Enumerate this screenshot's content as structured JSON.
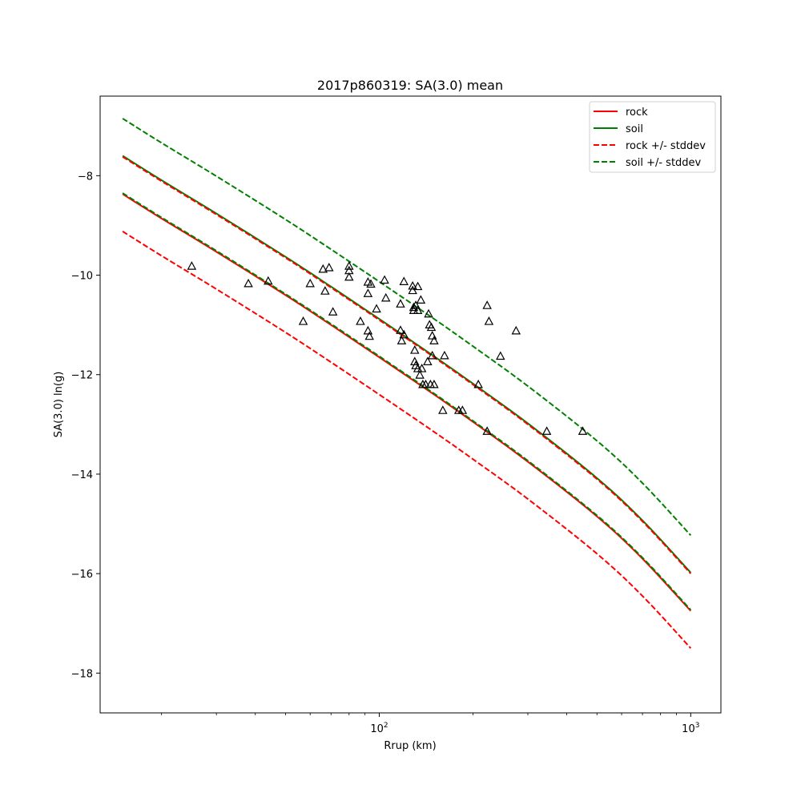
{
  "chart_data": {
    "type": "line",
    "title": "2017p860319: SA(3.0) mean",
    "xlabel": "Rrup (km)",
    "ylabel": "SA(3.0) ln(g)",
    "x_scale": "log",
    "xlim": [
      12.7,
      1250
    ],
    "ylim": [
      -18.8,
      -6.4
    ],
    "x_ticks": [
      {
        "value": 100,
        "base": "10",
        "exp": "2"
      },
      {
        "value": 1000,
        "base": "10",
        "exp": "3"
      }
    ],
    "y_ticks": [
      {
        "value": -8,
        "label": "−8"
      },
      {
        "value": -10,
        "label": "−10"
      },
      {
        "value": -12,
        "label": "−12"
      },
      {
        "value": -14,
        "label": "−14"
      },
      {
        "value": -16,
        "label": "−16"
      },
      {
        "value": -18,
        "label": "−18"
      }
    ],
    "grid": false,
    "legend_position": "top-right",
    "legend": [
      {
        "label": "rock",
        "color": "#ff0000",
        "dash": "solid"
      },
      {
        "label": "soil",
        "color": "#008000",
        "dash": "solid"
      },
      {
        "label": "rock +/- stddev",
        "color": "#ff0000",
        "dash": "dashed"
      },
      {
        "label": "soil +/- stddev",
        "color": "#008000",
        "dash": "dashed"
      }
    ],
    "x": [
      15,
      20,
      30,
      50,
      70,
      100,
      150,
      200,
      300,
      500,
      700,
      1000
    ],
    "series": [
      {
        "group": "rock",
        "color": "#ff0000",
        "dash": "solid",
        "values": [
          -8.37,
          -8.86,
          -9.53,
          -10.4,
          -11.0,
          -11.65,
          -12.4,
          -12.95,
          -13.75,
          -14.85,
          -15.7,
          -16.75
        ]
      },
      {
        "group": "soil",
        "color": "#008000",
        "dash": "solid",
        "values": [
          -7.6,
          -8.09,
          -8.76,
          -9.63,
          -10.23,
          -10.88,
          -11.63,
          -12.18,
          -12.98,
          -14.08,
          -14.93,
          -15.98
        ]
      },
      {
        "group": "rock +/- stddev",
        "color": "#ff0000",
        "dash": "dashed",
        "values": [
          -7.62,
          -8.11,
          -8.78,
          -9.65,
          -10.25,
          -10.9,
          -11.65,
          -12.2,
          -13.0,
          -14.1,
          -14.95,
          -16.0
        ]
      },
      {
        "group": "rock +/- stddev",
        "color": "#ff0000",
        "dash": "dashed",
        "values": [
          -9.12,
          -9.61,
          -10.28,
          -11.15,
          -11.75,
          -12.4,
          -13.15,
          -13.7,
          -14.5,
          -15.6,
          -16.45,
          -17.5
        ]
      },
      {
        "group": "soil +/- stddev",
        "color": "#008000",
        "dash": "dashed",
        "values": [
          -6.85,
          -7.34,
          -8.01,
          -8.88,
          -9.48,
          -10.13,
          -10.88,
          -11.43,
          -12.23,
          -13.33,
          -14.18,
          -15.23
        ]
      },
      {
        "group": "soil +/- stddev",
        "color": "#008000",
        "dash": "dashed",
        "values": [
          -8.35,
          -8.84,
          -9.51,
          -10.38,
          -10.98,
          -11.63,
          -12.38,
          -12.93,
          -13.73,
          -14.83,
          -15.68,
          -16.73
        ]
      }
    ],
    "observations": {
      "marker": "triangle",
      "points": [
        [
          25,
          -9.82
        ],
        [
          38,
          -10.17
        ],
        [
          44,
          -10.12
        ],
        [
          57,
          -10.93
        ],
        [
          60,
          -10.17
        ],
        [
          66,
          -9.88
        ],
        [
          67,
          -10.32
        ],
        [
          69,
          -9.85
        ],
        [
          71,
          -10.74
        ],
        [
          80,
          -9.82
        ],
        [
          80,
          -9.91
        ],
        [
          80,
          -10.04
        ],
        [
          87,
          -10.93
        ],
        [
          92,
          -10.14
        ],
        [
          92,
          -10.37
        ],
        [
          92,
          -11.12
        ],
        [
          93,
          -11.23
        ],
        [
          94,
          -10.18
        ],
        [
          98,
          -10.68
        ],
        [
          104,
          -10.1
        ],
        [
          105,
          -10.46
        ],
        [
          117,
          -10.58
        ],
        [
          117,
          -11.11
        ],
        [
          118,
          -11.32
        ],
        [
          120,
          -10.13
        ],
        [
          120,
          -11.2
        ],
        [
          128,
          -10.22
        ],
        [
          128,
          -10.31
        ],
        [
          129,
          -10.65
        ],
        [
          129,
          -10.71
        ],
        [
          130,
          -11.51
        ],
        [
          130,
          -11.74
        ],
        [
          131,
          -10.61
        ],
        [
          131,
          -11.82
        ],
        [
          133,
          -10.23
        ],
        [
          133,
          -10.71
        ],
        [
          133,
          -11.88
        ],
        [
          135,
          -12.01
        ],
        [
          136,
          -10.5
        ],
        [
          137,
          -11.88
        ],
        [
          138,
          -12.2
        ],
        [
          141,
          -12.2
        ],
        [
          143,
          -11.74
        ],
        [
          144,
          -10.78
        ],
        [
          145,
          -11.0
        ],
        [
          146,
          -12.2
        ],
        [
          147,
          -11.05
        ],
        [
          148,
          -11.22
        ],
        [
          148,
          -11.62
        ],
        [
          150,
          -11.32
        ],
        [
          150,
          -12.2
        ],
        [
          160,
          -12.72
        ],
        [
          162,
          -11.62
        ],
        [
          180,
          -12.72
        ],
        [
          185,
          -12.72
        ],
        [
          208,
          -12.2
        ],
        [
          222,
          -10.61
        ],
        [
          222,
          -13.14
        ],
        [
          225,
          -10.93
        ],
        [
          245,
          -11.63
        ],
        [
          275,
          -11.12
        ],
        [
          345,
          -13.14
        ],
        [
          450,
          -13.14
        ]
      ]
    }
  }
}
